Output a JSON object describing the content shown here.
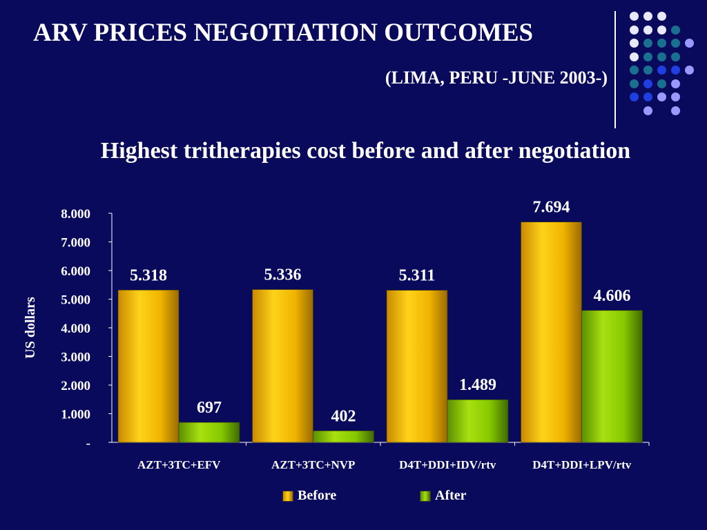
{
  "slide": {
    "title": "ARV PRICES NEGOTIATION OUTCOMES",
    "subtitle": "(LIMA, PERU -JUNE 2003-)"
  },
  "colors": {
    "background": "#0a0a5c",
    "before": "#f0b400",
    "after": "#7fbf00",
    "dot_white": "#e8e8ff",
    "dot_teal": "#1a7090",
    "dot_blue": "#1f3fe0",
    "dot_lavender": "#9999ff"
  },
  "chart_data": {
    "type": "bar",
    "title": "Highest tritherapies cost before and after negotiation",
    "ylabel": "US dollars",
    "xlabel": "",
    "categories": [
      "AZT+3TC+EFV",
      "AZT+3TC+NVP",
      "D4T+DDI+IDV/rtv",
      "D4T+DDI+LPV/rtv"
    ],
    "series": [
      {
        "name": "Before",
        "values": [
          5318,
          5336,
          5311,
          7694
        ],
        "labels": [
          "5.318",
          "5.336",
          "5.311",
          "7.694"
        ]
      },
      {
        "name": "After",
        "values": [
          697,
          402,
          1489,
          4606
        ],
        "labels": [
          "697",
          "402",
          "1.489",
          "4.606"
        ]
      }
    ],
    "ylim": [
      0,
      8000
    ],
    "yticks": [
      {
        "value": 0,
        "label": "-"
      },
      {
        "value": 1000,
        "label": "1.000"
      },
      {
        "value": 2000,
        "label": "2.000"
      },
      {
        "value": 3000,
        "label": "3.000"
      },
      {
        "value": 4000,
        "label": "4.000"
      },
      {
        "value": 5000,
        "label": "5.000"
      },
      {
        "value": 6000,
        "label": "6.000"
      },
      {
        "value": 7000,
        "label": "7.000"
      },
      {
        "value": 8000,
        "label": "8.000"
      }
    ],
    "grid": false,
    "legend": "bottom"
  }
}
